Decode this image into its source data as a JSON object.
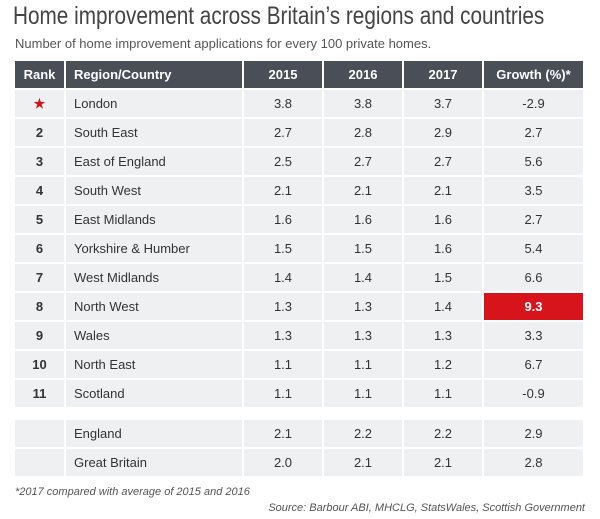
{
  "title": "Home improvement across Britain’s regions and countries",
  "subtitle": "Number of home improvement applications for every 100 private homes.",
  "headers": [
    "Rank",
    "Region/Country",
    "2015",
    "2016",
    "2017",
    "Growth (%)*"
  ],
  "rows": [
    {
      "rank": "★",
      "region": "London",
      "y2015": "3.8",
      "y2016": "3.8",
      "y2017": "3.7",
      "growth": "-2.9"
    },
    {
      "rank": "2",
      "region": "South East",
      "y2015": "2.7",
      "y2016": "2.8",
      "y2017": "2.9",
      "growth": "2.7"
    },
    {
      "rank": "3",
      "region": "East of England",
      "y2015": "2.5",
      "y2016": "2.7",
      "y2017": "2.7",
      "growth": "5.6"
    },
    {
      "rank": "4",
      "region": "South West",
      "y2015": "2.1",
      "y2016": "2.1",
      "y2017": "2.1",
      "growth": "3.5"
    },
    {
      "rank": "5",
      "region": "East Midlands",
      "y2015": "1.6",
      "y2016": "1.6",
      "y2017": "1.6",
      "growth": "2.7"
    },
    {
      "rank": "6",
      "region": "Yorkshire & Humber",
      "y2015": "1.5",
      "y2016": "1.5",
      "y2017": "1.6",
      "growth": "5.4"
    },
    {
      "rank": "7",
      "region": "West Midlands",
      "y2015": "1.4",
      "y2016": "1.4",
      "y2017": "1.5",
      "growth": "6.6"
    },
    {
      "rank": "8",
      "region": "North West",
      "y2015": "1.3",
      "y2016": "1.3",
      "y2017": "1.4",
      "growth": "9.3",
      "highlight": true
    },
    {
      "rank": "9",
      "region": "Wales",
      "y2015": "1.3",
      "y2016": "1.3",
      "y2017": "1.3",
      "growth": "3.3"
    },
    {
      "rank": "10",
      "region": "North East",
      "y2015": "1.1",
      "y2016": "1.1",
      "y2017": "1.2",
      "growth": "6.7"
    },
    {
      "rank": "11",
      "region": "Scotland",
      "y2015": "1.1",
      "y2016": "1.1",
      "y2017": "1.1",
      "growth": "-0.9"
    }
  ],
  "totals": [
    {
      "rank": "",
      "region": "England",
      "y2015": "2.1",
      "y2016": "2.2",
      "y2017": "2.2",
      "growth": "2.9"
    },
    {
      "rank": "",
      "region": "Great Britain",
      "y2015": "2.0",
      "y2016": "2.1",
      "y2017": "2.1",
      "growth": "2.8"
    }
  ],
  "footnote": "*2017 compared with average of 2015 and 2016",
  "source": "Source: Barbour ABI, MHCLG, StatsWales, Scottish Government",
  "colors": {
    "header": "#4a4f57",
    "highlight": "#d7141c",
    "cell": "#eef0f2"
  }
}
